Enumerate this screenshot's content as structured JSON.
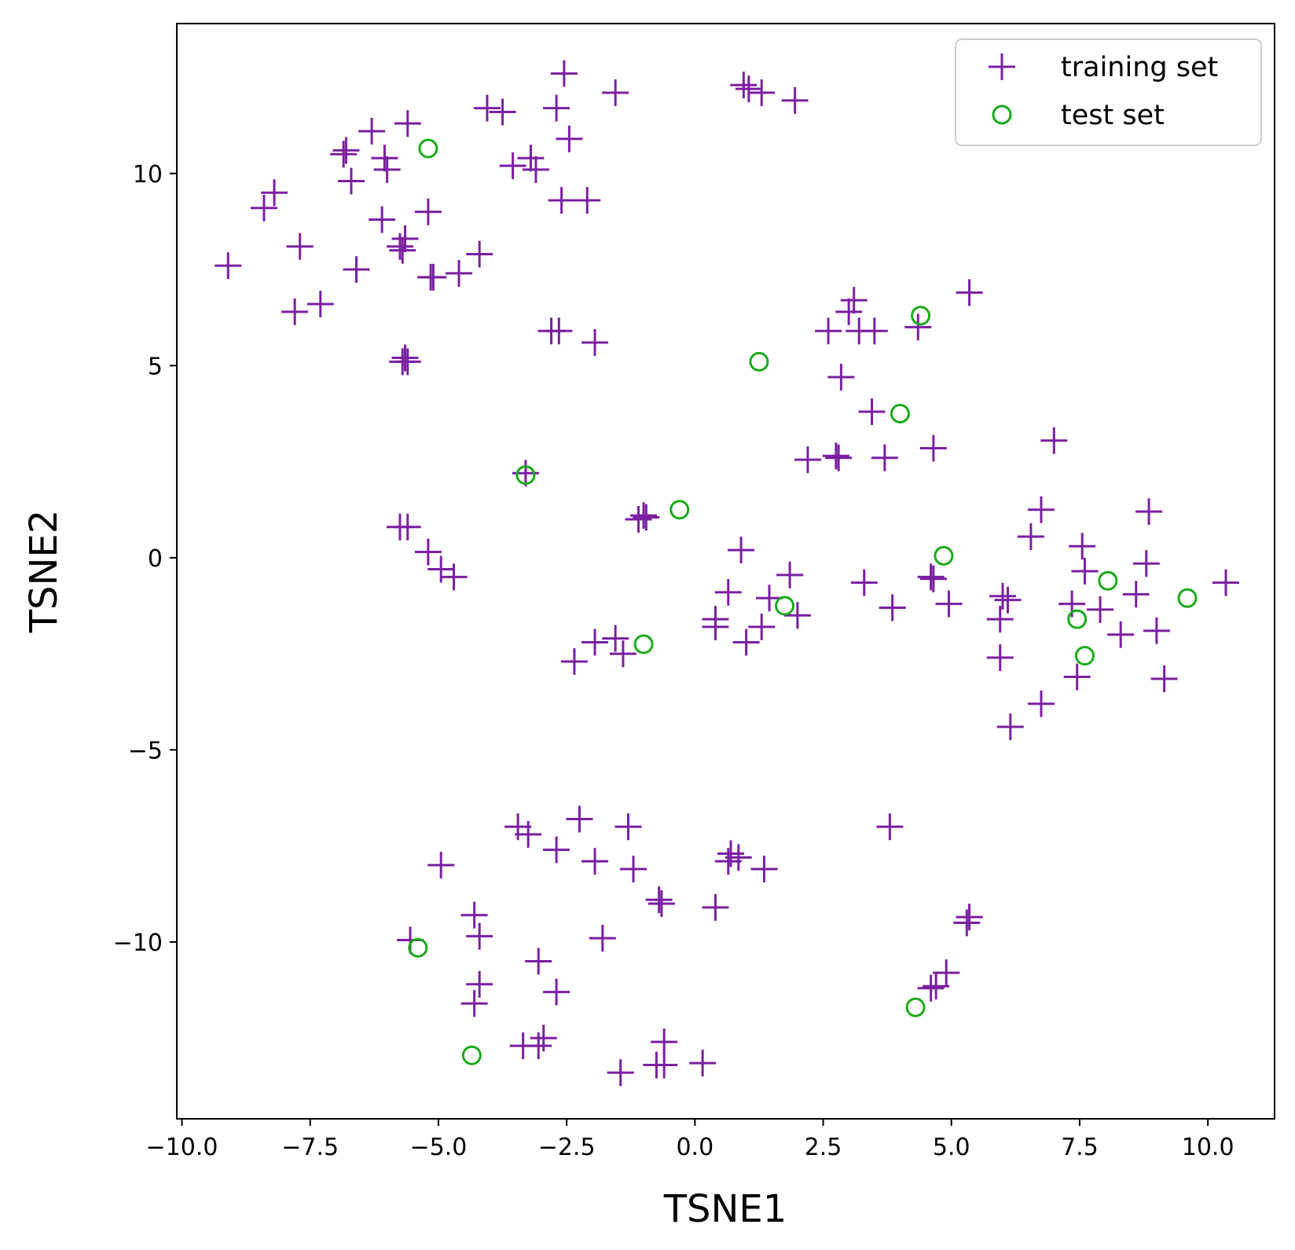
{
  "chart_data": {
    "type": "scatter",
    "xlabel": "TSNE1",
    "ylabel": "TSNE2",
    "xlim": [
      -10.1,
      11.3
    ],
    "ylim": [
      -14.6,
      13.9
    ],
    "xticks": [
      -10.0,
      -7.5,
      -5.0,
      -2.5,
      0.0,
      2.5,
      5.0,
      7.5,
      10.0
    ],
    "xtick_labels": [
      "−10.0",
      "−7.5",
      "−5.0",
      "−2.5",
      "0.0",
      "2.5",
      "5.0",
      "7.5",
      "10.0"
    ],
    "yticks": [
      10,
      5,
      0,
      -5,
      -10
    ],
    "ytick_labels": [
      "10",
      "5",
      "0",
      "−5",
      "−10"
    ],
    "grid": false,
    "legend_position": "top-right",
    "series": [
      {
        "name": "training set",
        "marker": "plus",
        "color": "#7B1FA2",
        "points": [
          [
            -9.1,
            7.6
          ],
          [
            -8.4,
            9.1
          ],
          [
            -8.2,
            9.5
          ],
          [
            -7.7,
            8.1
          ],
          [
            -7.8,
            6.4
          ],
          [
            -7.3,
            6.6
          ],
          [
            -6.85,
            10.5
          ],
          [
            -6.8,
            10.6
          ],
          [
            -6.7,
            9.8
          ],
          [
            -6.6,
            7.5
          ],
          [
            -6.3,
            11.1
          ],
          [
            -6.05,
            10.4
          ],
          [
            -6.0,
            10.1
          ],
          [
            -6.1,
            8.8
          ],
          [
            -5.75,
            8.1
          ],
          [
            -5.7,
            8.0
          ],
          [
            -5.65,
            8.3
          ],
          [
            -5.6,
            11.3
          ],
          [
            -5.7,
            5.1
          ],
          [
            -5.65,
            5.2
          ],
          [
            -5.6,
            5.1
          ],
          [
            -5.2,
            9.0
          ],
          [
            -5.15,
            7.3
          ],
          [
            -5.1,
            7.3
          ],
          [
            -4.6,
            7.4
          ],
          [
            -4.2,
            7.9
          ],
          [
            -4.05,
            11.7
          ],
          [
            -3.75,
            11.6
          ],
          [
            -3.55,
            10.2
          ],
          [
            -3.2,
            10.4
          ],
          [
            -3.1,
            10.1
          ],
          [
            -2.7,
            11.7
          ],
          [
            -2.55,
            12.6
          ],
          [
            -2.45,
            10.9
          ],
          [
            -2.6,
            9.3
          ],
          [
            -2.1,
            9.3
          ],
          [
            -1.55,
            12.1
          ],
          [
            -2.8,
            5.9
          ],
          [
            -2.65,
            5.9
          ],
          [
            -1.95,
            5.6
          ],
          [
            -3.3,
            2.2
          ],
          [
            -5.75,
            0.8
          ],
          [
            -5.6,
            0.8
          ],
          [
            -5.2,
            0.15
          ],
          [
            -4.95,
            -0.3
          ],
          [
            -4.7,
            -0.5
          ],
          [
            -1.1,
            1.0
          ],
          [
            -1.0,
            1.1
          ],
          [
            -0.95,
            1.05
          ],
          [
            -2.35,
            -2.7
          ],
          [
            -1.95,
            -2.2
          ],
          [
            -1.55,
            -2.1
          ],
          [
            -1.4,
            -2.5
          ],
          [
            0.4,
            -1.6
          ],
          [
            0.4,
            -1.8
          ],
          [
            0.65,
            -0.9
          ],
          [
            0.9,
            0.2
          ],
          [
            1.0,
            -2.2
          ],
          [
            1.3,
            -1.8
          ],
          [
            1.45,
            -1.05
          ],
          [
            1.85,
            -0.45
          ],
          [
            2.0,
            -1.5
          ],
          [
            0.95,
            12.3
          ],
          [
            1.05,
            12.2
          ],
          [
            1.3,
            12.1
          ],
          [
            1.95,
            11.9
          ],
          [
            2.2,
            2.55
          ],
          [
            2.6,
            5.9
          ],
          [
            2.75,
            2.65
          ],
          [
            2.8,
            2.6
          ],
          [
            2.85,
            4.7
          ],
          [
            3.0,
            6.4
          ],
          [
            3.1,
            6.7
          ],
          [
            3.2,
            5.9
          ],
          [
            3.5,
            5.9
          ],
          [
            3.45,
            3.8
          ],
          [
            3.3,
            -0.65
          ],
          [
            3.7,
            2.6
          ],
          [
            3.85,
            -1.3
          ],
          [
            4.35,
            6.0
          ],
          [
            4.65,
            2.85
          ],
          [
            4.6,
            -0.5
          ],
          [
            4.65,
            -0.55
          ],
          [
            4.95,
            -1.2
          ],
          [
            5.35,
            6.9
          ],
          [
            5.95,
            -1.6
          ],
          [
            5.95,
            -2.6
          ],
          [
            6.0,
            -1.0
          ],
          [
            6.1,
            -1.1
          ],
          [
            6.15,
            -4.4
          ],
          [
            6.55,
            0.55
          ],
          [
            6.75,
            1.25
          ],
          [
            6.75,
            -3.8
          ],
          [
            7.0,
            3.05
          ],
          [
            7.35,
            -1.2
          ],
          [
            7.45,
            -3.1
          ],
          [
            7.55,
            0.3
          ],
          [
            7.6,
            -0.35
          ],
          [
            7.9,
            -1.35
          ],
          [
            8.3,
            -2.0
          ],
          [
            8.6,
            -0.95
          ],
          [
            8.8,
            -0.15
          ],
          [
            8.85,
            1.2
          ],
          [
            9.0,
            -1.9
          ],
          [
            9.15,
            -3.15
          ],
          [
            10.35,
            -0.65
          ],
          [
            -4.95,
            -8.0
          ],
          [
            -4.3,
            -9.3
          ],
          [
            -4.2,
            -9.85
          ],
          [
            -4.3,
            -11.6
          ],
          [
            -4.2,
            -11.1
          ],
          [
            -3.45,
            -7.0
          ],
          [
            -3.25,
            -7.2
          ],
          [
            -3.35,
            -12.7
          ],
          [
            -3.05,
            -10.5
          ],
          [
            -2.95,
            -12.5
          ],
          [
            -3.05,
            -12.7
          ],
          [
            -2.7,
            -11.3
          ],
          [
            -2.7,
            -7.6
          ],
          [
            -2.25,
            -6.8
          ],
          [
            -1.95,
            -7.9
          ],
          [
            -1.8,
            -9.9
          ],
          [
            -1.3,
            -7.0
          ],
          [
            -1.2,
            -8.1
          ],
          [
            -1.45,
            -13.4
          ],
          [
            -0.75,
            -13.2
          ],
          [
            -0.7,
            -8.9
          ],
          [
            -0.65,
            -9.0
          ],
          [
            -0.6,
            -12.6
          ],
          [
            -0.6,
            -13.2
          ],
          [
            0.15,
            -13.15
          ],
          [
            0.4,
            -9.1
          ],
          [
            0.65,
            -7.9
          ],
          [
            0.7,
            -7.7
          ],
          [
            0.85,
            -7.8
          ],
          [
            1.35,
            -8.1
          ],
          [
            3.8,
            -7.0
          ],
          [
            4.6,
            -11.2
          ],
          [
            4.7,
            -11.15
          ],
          [
            4.9,
            -10.8
          ],
          [
            5.3,
            -9.5
          ],
          [
            5.35,
            -9.35
          ],
          [
            -5.55,
            -9.95
          ]
        ]
      },
      {
        "name": "test set",
        "marker": "circle",
        "color": "#1AAA1A",
        "points": [
          [
            -5.2,
            10.65
          ],
          [
            -3.3,
            2.15
          ],
          [
            -1.0,
            -2.25
          ],
          [
            -0.3,
            1.25
          ],
          [
            1.25,
            5.1
          ],
          [
            1.75,
            -1.25
          ],
          [
            4.0,
            3.75
          ],
          [
            4.4,
            6.3
          ],
          [
            4.85,
            0.05
          ],
          [
            7.45,
            -1.6
          ],
          [
            7.6,
            -2.55
          ],
          [
            8.05,
            -0.6
          ],
          [
            9.6,
            -1.05
          ],
          [
            -5.4,
            -10.15
          ],
          [
            -4.35,
            -12.95
          ],
          [
            4.3,
            -11.7
          ]
        ]
      }
    ]
  }
}
